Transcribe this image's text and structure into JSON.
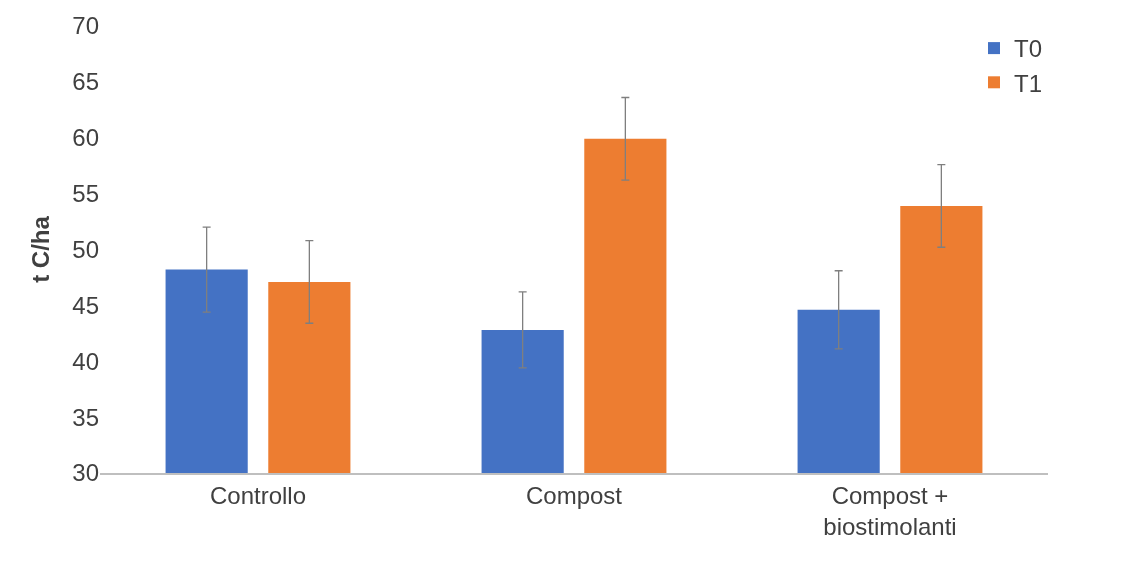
{
  "chart_data": {
    "type": "bar",
    "ylabel": "t C/ha",
    "categories": [
      "Controllo",
      "Compost",
      "Compost + biostimolanti"
    ],
    "series": [
      {
        "name": "T0",
        "color": "#4472c4",
        "values": [
          48.2,
          42.8,
          44.6
        ],
        "errors": [
          3.8,
          3.4,
          3.5
        ]
      },
      {
        "name": "T1",
        "color": "#ed7d31",
        "values": [
          47.1,
          59.9,
          53.9
        ],
        "errors": [
          3.7,
          3.7,
          3.7
        ]
      }
    ],
    "ylim": [
      30,
      70
    ],
    "yticks": [
      30,
      35,
      40,
      45,
      50,
      55,
      60,
      65,
      70
    ],
    "grid": false,
    "legend": "top right"
  }
}
